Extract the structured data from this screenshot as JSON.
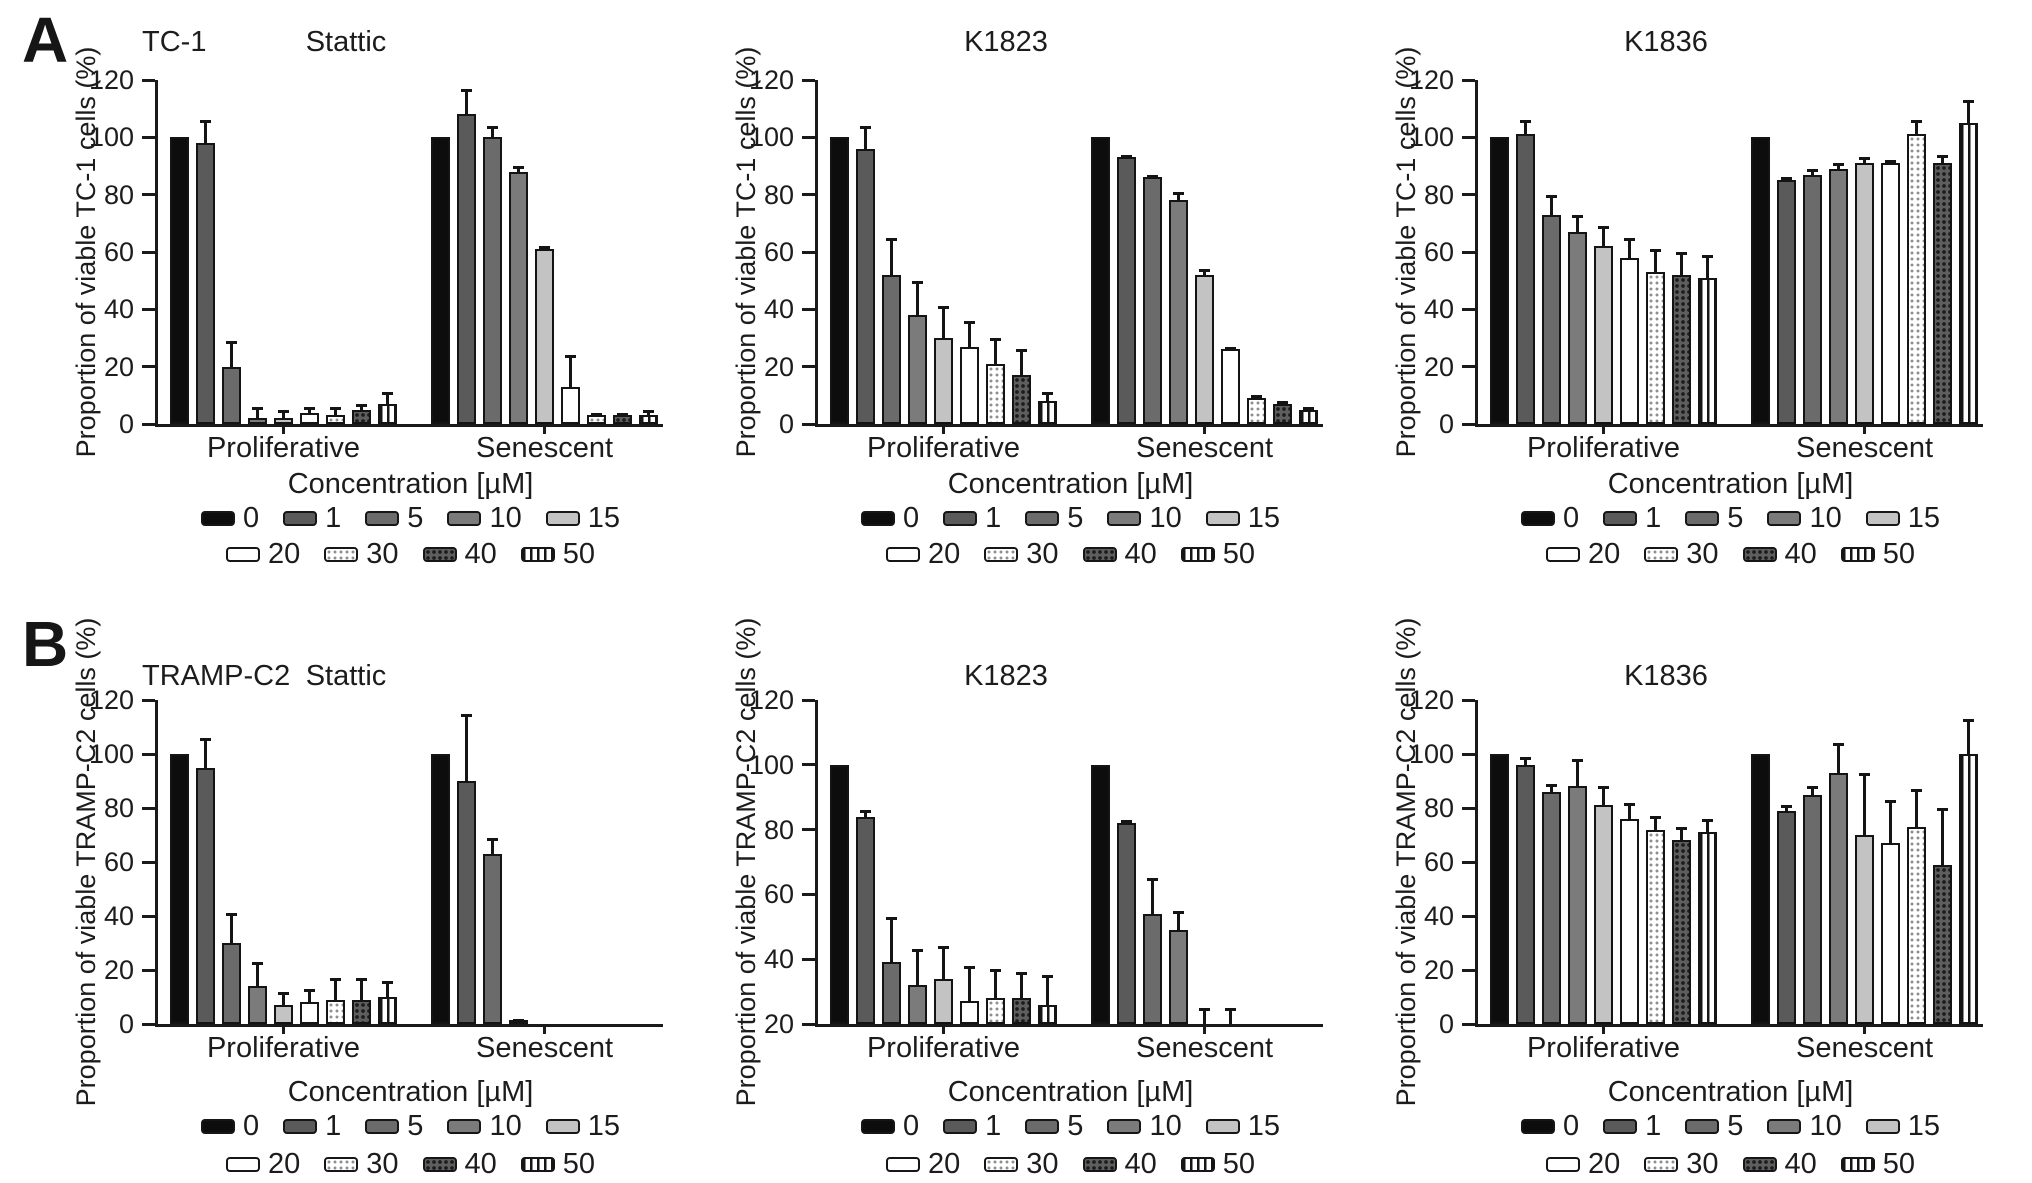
{
  "figure": {
    "rows": [
      {
        "label": "A",
        "cell_line": "TC-1"
      },
      {
        "label": "B",
        "cell_line": "TRAMP-C2"
      }
    ]
  },
  "legend": {
    "title": "Concentration [µM]",
    "entries": [
      {
        "label": "0",
        "pattern": "p0"
      },
      {
        "label": "1",
        "pattern": "p1"
      },
      {
        "label": "5",
        "pattern": "p5"
      },
      {
        "label": "10",
        "pattern": "p10"
      },
      {
        "label": "15",
        "pattern": "p15"
      },
      {
        "label": "20",
        "pattern": "p20"
      },
      {
        "label": "30",
        "pattern": "p30"
      },
      {
        "label": "40",
        "pattern": "p40"
      },
      {
        "label": "50",
        "pattern": "p50"
      }
    ],
    "row_split": 5
  },
  "chart_data": [
    {
      "type": "bar",
      "row": "A",
      "cell_line": "TC-1",
      "title": "Stattic",
      "ylabel": "Proportion of viable TC-1 cells (%)",
      "xlabel": "Concentration [µM]",
      "ylim": [
        0,
        120
      ],
      "ytick_step": 20,
      "grid": false,
      "concentrations_uM": [
        0,
        1,
        5,
        10,
        15,
        20,
        30,
        40,
        50
      ],
      "groups": [
        {
          "label": "Proliferative",
          "values": [
            100,
            98,
            20,
            2,
            2,
            4,
            3,
            5,
            7
          ],
          "errors": [
            0,
            8,
            9,
            4,
            3,
            2,
            3,
            2,
            4
          ]
        },
        {
          "label": "Senescent",
          "values": [
            100,
            108,
            100,
            88,
            61,
            13,
            3,
            3,
            3
          ],
          "errors": [
            0,
            9,
            4,
            2,
            1,
            11,
            1,
            1,
            2
          ]
        }
      ]
    },
    {
      "type": "bar",
      "row": "A",
      "cell_line": "",
      "title": "K1823",
      "ylabel": "Proportion of viable TC-1 cells (%)",
      "xlabel": "Concentration [µM]",
      "ylim": [
        0,
        120
      ],
      "ytick_step": 20,
      "grid": false,
      "concentrations_uM": [
        0,
        1,
        5,
        10,
        15,
        20,
        30,
        40,
        50
      ],
      "groups": [
        {
          "label": "Proliferative",
          "values": [
            100,
            96,
            52,
            38,
            30,
            27,
            21,
            17,
            8
          ],
          "errors": [
            0,
            8,
            13,
            12,
            11,
            9,
            9,
            9,
            3
          ]
        },
        {
          "label": "Senescent",
          "values": [
            100,
            93,
            86,
            78,
            52,
            26,
            9,
            7,
            5
          ],
          "errors": [
            0,
            1,
            1,
            3,
            2,
            1,
            1,
            1,
            1
          ]
        }
      ]
    },
    {
      "type": "bar",
      "row": "A",
      "cell_line": "",
      "title": "K1836",
      "ylabel": "Proportion of viable TC-1 cells (%)",
      "xlabel": "Concentration [µM]",
      "ylim": [
        0,
        120
      ],
      "ytick_step": 20,
      "grid": false,
      "concentrations_uM": [
        0,
        1,
        5,
        10,
        15,
        20,
        30,
        40,
        50
      ],
      "groups": [
        {
          "label": "Proliferative",
          "values": [
            100,
            101,
            73,
            67,
            62,
            58,
            53,
            52,
            51
          ],
          "errors": [
            0,
            5,
            7,
            6,
            7,
            7,
            8,
            8,
            8
          ]
        },
        {
          "label": "Senescent",
          "values": [
            100,
            85,
            87,
            89,
            91,
            91,
            101,
            91,
            105
          ],
          "errors": [
            0,
            1,
            2,
            2,
            2,
            1,
            5,
            3,
            8
          ]
        }
      ]
    },
    {
      "type": "bar",
      "row": "B",
      "cell_line": "TRAMP-C2",
      "title": "Stattic",
      "ylabel": "Proportion of viable TRAMP-C2 cells (%)",
      "xlabel": "Concentration [µM]",
      "ylim": [
        0,
        120
      ],
      "ytick_step": 20,
      "grid": false,
      "concentrations_uM": [
        0,
        1,
        5,
        10,
        15,
        20,
        30,
        40,
        50
      ],
      "groups": [
        {
          "label": "Proliferative",
          "values": [
            100,
            95,
            30,
            14,
            7,
            8,
            9,
            9,
            10
          ],
          "errors": [
            0,
            11,
            11,
            9,
            5,
            5,
            8,
            8,
            6
          ]
        },
        {
          "label": "Senescent",
          "values": [
            100,
            90,
            63,
            1,
            0,
            0,
            0,
            0,
            0
          ],
          "errors": [
            0,
            25,
            6,
            1,
            0,
            0,
            0,
            0,
            0
          ]
        }
      ]
    },
    {
      "type": "bar",
      "row": "B",
      "cell_line": "",
      "title": "K1823",
      "ylabel": "Proportion of viable TRAMP-C2 cells (%)",
      "xlabel": "Concentration [µM]",
      "ylim": [
        20,
        120
      ],
      "ytick_step": 20,
      "grid": false,
      "concentrations_uM": [
        0,
        1,
        5,
        10,
        15,
        20,
        30,
        40,
        50
      ],
      "groups": [
        {
          "label": "Proliferative",
          "values": [
            100,
            84,
            39,
            32,
            34,
            27,
            28,
            28,
            26
          ],
          "errors": [
            0,
            2,
            14,
            11,
            10,
            11,
            9,
            8,
            9
          ]
        },
        {
          "label": "Senescent",
          "values": [
            100,
            82,
            54,
            49,
            20,
            20,
            20,
            20,
            20
          ],
          "errors": [
            0,
            1,
            11,
            6,
            5,
            5,
            0,
            0,
            0
          ]
        }
      ]
    },
    {
      "type": "bar",
      "row": "B",
      "cell_line": "",
      "title": "K1836",
      "ylabel": "Proportion of viable TRAMP-C2 cells (%)",
      "xlabel": "Concentration [µM]",
      "ylim": [
        0,
        120
      ],
      "ytick_step": 20,
      "grid": false,
      "concentrations_uM": [
        0,
        1,
        5,
        10,
        15,
        20,
        30,
        40,
        50
      ],
      "groups": [
        {
          "label": "Proliferative",
          "values": [
            100,
            96,
            86,
            88,
            81,
            76,
            72,
            68,
            71
          ],
          "errors": [
            0,
            3,
            3,
            10,
            7,
            6,
            5,
            5,
            5
          ]
        },
        {
          "label": "Senescent",
          "values": [
            100,
            79,
            85,
            93,
            70,
            67,
            73,
            59,
            100
          ],
          "errors": [
            0,
            2,
            3,
            11,
            23,
            16,
            14,
            21,
            13
          ]
        }
      ]
    }
  ],
  "colors": {
    "ink": "#1a1a1a",
    "background": "#ffffff",
    "fills": {
      "0": "#0d0d0d",
      "1": "#5a5a5a",
      "5": "#6b6b6b",
      "10": "#7b7b7b",
      "15": "#c3c3c3",
      "20": "#ffffff",
      "30": "white-dotted",
      "40": "dark-dotted",
      "50": "vertical-striped"
    }
  }
}
